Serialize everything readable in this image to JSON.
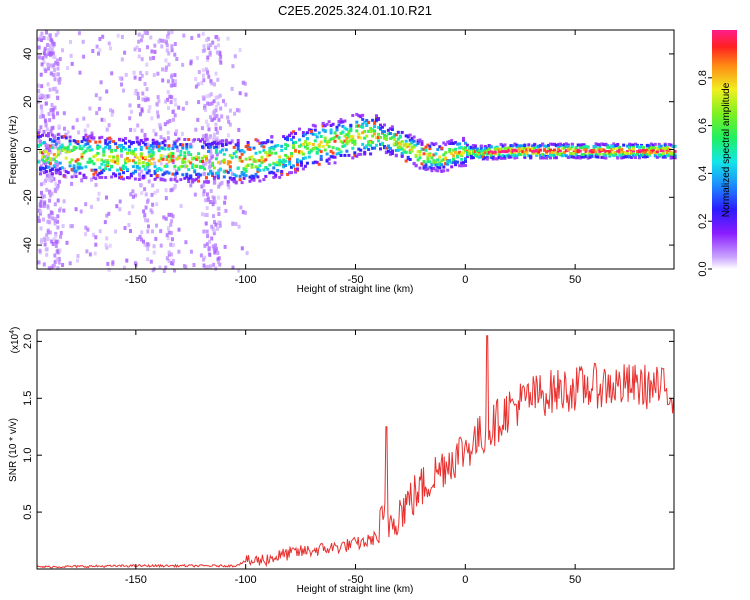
{
  "title": "C2E5.2025.324.01.10.R21",
  "chart_data": [
    {
      "type": "heatmap",
      "xlabel": "Height of straight line (km)",
      "ylabel": "Frequency (Hz)",
      "xlim": [
        -195,
        95
      ],
      "ylim": [
        -50,
        50
      ],
      "xticks": [
        -150,
        -100,
        -50,
        0,
        50
      ],
      "yticks": [
        -40,
        -20,
        0,
        20,
        40
      ],
      "xtick_labels": [
        "-150",
        "-100",
        "-50",
        "0",
        "50"
      ],
      "ytick_labels": [
        "-40",
        "-20",
        "0",
        "20",
        "40"
      ],
      "colorbar": {
        "label": "Normalized spectral amplitude",
        "range": [
          0,
          1
        ],
        "ticks": [
          0.0,
          0.2,
          0.4,
          0.6,
          0.8
        ],
        "tick_labels": [
          "0.0",
          "0.2",
          "0.4",
          "0.6",
          "0.8"
        ]
      },
      "ridge": {
        "x": [
          -195,
          -180,
          -160,
          -140,
          -120,
          -105,
          -95,
          -85,
          -75,
          -65,
          -55,
          -48,
          -40,
          -30,
          -20,
          -12,
          -5,
          0,
          5,
          10,
          20,
          40,
          60,
          80,
          95
        ],
        "y": [
          -1,
          -2,
          -3,
          -3.5,
          -4,
          -4.5,
          -4,
          -2,
          1,
          3,
          5,
          7,
          6,
          3,
          -2,
          -3,
          -1,
          0,
          -1,
          -0.5,
          0,
          0,
          0,
          0,
          0
        ]
      }
    },
    {
      "type": "line",
      "xlabel": "Height of straight line (km)",
      "ylabel": "SNR (10 * v/v)",
      "y_multiplier_label": "(x10",
      "y_multiplier_exp": "4",
      "y_multiplier_close": ")",
      "xlim": [
        -195,
        95
      ],
      "ylim": [
        0,
        2.1
      ],
      "xticks": [
        -150,
        -100,
        -50,
        0,
        50
      ],
      "yticks": [
        0.5,
        1.0,
        1.5,
        2.0
      ],
      "xtick_labels": [
        "-150",
        "-100",
        "-50",
        "0",
        "50"
      ],
      "ytick_labels": [
        "0.5",
        "1.0",
        "1.5",
        "2.0"
      ],
      "color": "#e8312f",
      "envelope": {
        "x": [
          -195,
          -150,
          -105,
          -100,
          -90,
          -80,
          -60,
          -45,
          -40,
          -38,
          -35,
          -30,
          -20,
          -10,
          0,
          10,
          20,
          30,
          40,
          60,
          80,
          95
        ],
        "y": [
          0.02,
          0.03,
          0.03,
          0.07,
          0.1,
          0.15,
          0.2,
          0.25,
          0.3,
          0.45,
          0.45,
          0.55,
          0.75,
          0.95,
          1.1,
          1.25,
          1.45,
          1.55,
          1.6,
          1.65,
          1.65,
          1.6
        ]
      }
    }
  ]
}
